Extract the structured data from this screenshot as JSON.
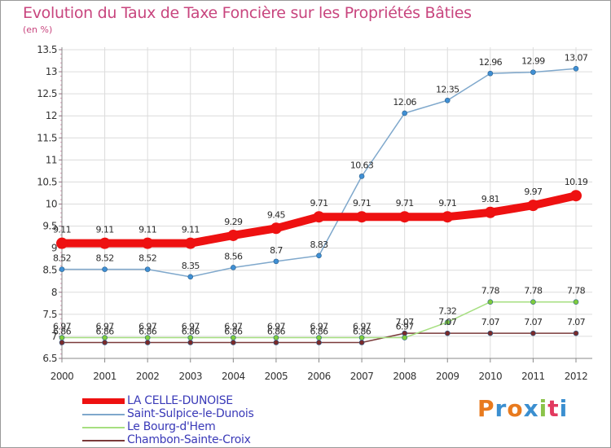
{
  "header": {
    "title": "Evolution du Taux de Taxe Foncière sur les Propriétés Bâties",
    "unit": "(en %)"
  },
  "brand": {
    "text": "Proxiti",
    "letter_colors": [
      "#e87a1e",
      "#3b8fd0",
      "#e87a1e",
      "#3b8fd0",
      "#8bc34a",
      "#e23a5f",
      "#3b8fd0"
    ]
  },
  "colors": {
    "title": "#c8457e",
    "axis": "#888888",
    "grid": "#dcdcdc",
    "legend_text": "#3a3ab8"
  },
  "chart_data": {
    "type": "line",
    "x": [
      "2000",
      "2001",
      "2002",
      "2003",
      "2004",
      "2005",
      "2006",
      "2007",
      "2008",
      "2009",
      "2010",
      "2011",
      "2012"
    ],
    "ylim": [
      6.5,
      13.5
    ],
    "yticks": [
      "6.5",
      "7",
      "7.5",
      "8",
      "8.5",
      "9",
      "9.5",
      "10",
      "10.5",
      "11",
      "11.5",
      "12",
      "12.5",
      "13",
      "13.5"
    ],
    "grid": true,
    "legend_position": "bottom-left",
    "series": [
      {
        "name": "LA CELLE-DUNOISE",
        "color": "#ee1111",
        "marker_color": "#ee1111",
        "thick": true,
        "values": [
          9.11,
          9.11,
          9.11,
          9.11,
          9.29,
          9.45,
          9.71,
          9.71,
          9.71,
          9.71,
          9.81,
          9.97,
          10.19
        ],
        "labels": [
          "9.11",
          "9.11",
          "9.11",
          "9.11",
          "9.29",
          "9.45",
          "9.71",
          "9.71",
          "9.71",
          "9.71",
          "9.81",
          "9.97",
          "10.19"
        ]
      },
      {
        "name": "Saint-Sulpice-le-Dunois",
        "color": "#7fa8cc",
        "marker_color": "#3f8fd4",
        "thick": false,
        "values": [
          8.52,
          8.52,
          8.52,
          8.35,
          8.56,
          8.7,
          8.83,
          10.63,
          12.06,
          12.35,
          12.96,
          12.99,
          13.07
        ],
        "labels": [
          "8.52",
          "8.52",
          "8.52",
          "8.35",
          "8.56",
          "8.7",
          "8.83",
          "10.63",
          "12.06",
          "12.35",
          "12.96",
          "12.99",
          "13.07"
        ]
      },
      {
        "name": "Le Bourg-d'Hem",
        "color": "#a6df80",
        "marker_color": "#7fcc3c",
        "thick": false,
        "values": [
          6.97,
          6.97,
          6.97,
          6.97,
          6.97,
          6.97,
          6.97,
          6.97,
          6.97,
          7.32,
          7.78,
          7.78,
          7.78
        ],
        "labels": [
          "6.97",
          "6.97",
          "6.97",
          "6.97",
          "6.97",
          "6.97",
          "6.97",
          "6.97",
          "6.97",
          "7.32",
          "7.78",
          "7.78",
          "7.78"
        ]
      },
      {
        "name": "Chambon-Sainte-Croix",
        "color": "#7a3a3a",
        "marker_color": "#7a2a2a",
        "thick": false,
        "values": [
          6.86,
          6.86,
          6.86,
          6.86,
          6.86,
          6.86,
          6.86,
          6.86,
          7.07,
          7.07,
          7.07,
          7.07,
          7.07
        ],
        "labels": [
          "6.86",
          "6.86",
          "6.86",
          "6.86",
          "6.86",
          "6.86",
          "6.86",
          "6.86",
          "7.07",
          "7.07",
          "7.07",
          "7.07",
          "7.07"
        ]
      }
    ]
  }
}
